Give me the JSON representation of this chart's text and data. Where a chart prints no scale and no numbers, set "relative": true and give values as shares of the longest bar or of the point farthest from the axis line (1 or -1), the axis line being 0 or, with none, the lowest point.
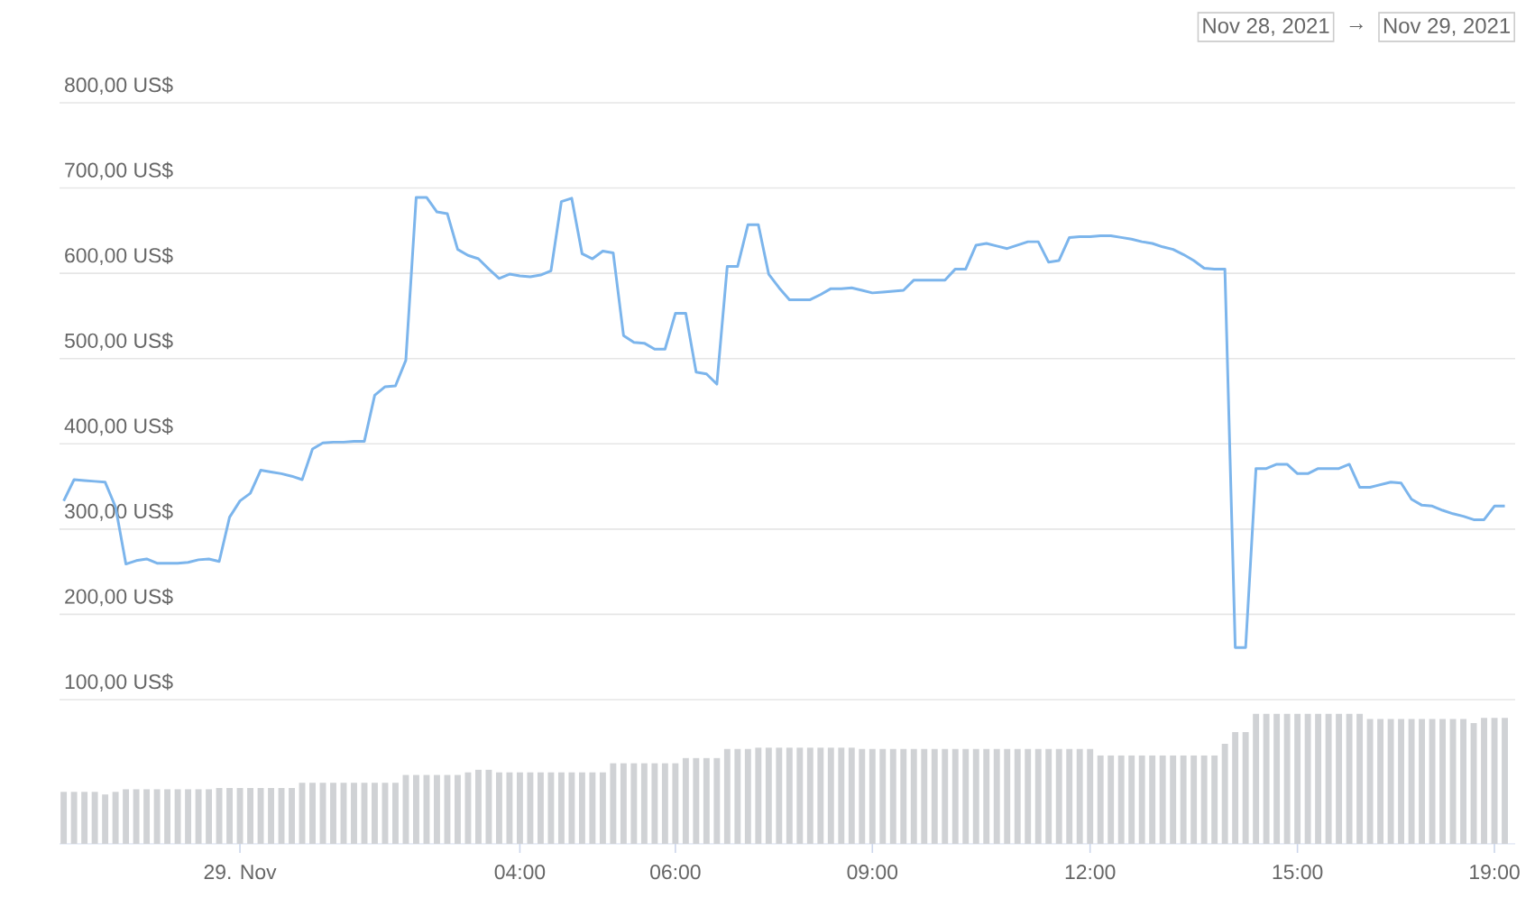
{
  "chart_data": [
    {
      "type": "line",
      "color": "#7cb5ec",
      "grid": "y",
      "tick_labels": "y",
      "ylim": [
        100,
        800
      ],
      "yticks": [
        {
          "value": 100,
          "label": "100,00 US$"
        },
        {
          "value": 200,
          "label": "200,00 US$"
        },
        {
          "value": 300,
          "label": "300,00 US$"
        },
        {
          "value": 400,
          "label": "400,00 US$"
        },
        {
          "value": 500,
          "label": "500,00 US$"
        },
        {
          "value": 600,
          "label": "600,00 US$"
        },
        {
          "value": 700,
          "label": "700,00 US$"
        },
        {
          "value": 800,
          "label": "800,00 US$"
        }
      ],
      "annotations": [
        "Nov 28, 2021",
        "→",
        "Nov 29, 2021"
      ],
      "categories": [
        null,
        null,
        null,
        null,
        null,
        null,
        null,
        null,
        null,
        null,
        null,
        null,
        null,
        null,
        null,
        null,
        null,
        null,
        null,
        null,
        null,
        null,
        null,
        null,
        null,
        null,
        null,
        null,
        null,
        null,
        null,
        null,
        null,
        null,
        null,
        null,
        null,
        null,
        null,
        null,
        null,
        null,
        null,
        null,
        null,
        null,
        null,
        null,
        null,
        null,
        null,
        null,
        null,
        null,
        null,
        null,
        null,
        null,
        null,
        null,
        null,
        null,
        null,
        null,
        null,
        null,
        null,
        null,
        null,
        null,
        null,
        null,
        null,
        null,
        null,
        null,
        null,
        null,
        null,
        null,
        null,
        null,
        null,
        null,
        null,
        null,
        null,
        null,
        null,
        null,
        null,
        null,
        null,
        null,
        null,
        null,
        null,
        null,
        null,
        null,
        null,
        null,
        null,
        null,
        null,
        null,
        null,
        null,
        null,
        null,
        null,
        null,
        null,
        null,
        null,
        null,
        null,
        null,
        null,
        null,
        null,
        null,
        null,
        null,
        null,
        null,
        null,
        null,
        null,
        null,
        null,
        null,
        null,
        null,
        null,
        null,
        null,
        null,
        null,
        null
      ],
      "values": [
        333,
        358,
        357,
        356,
        355,
        326,
        259,
        263,
        265,
        260,
        260,
        260,
        261,
        264,
        265,
        262,
        314,
        333,
        342,
        369,
        367,
        365,
        362,
        358,
        394,
        401,
        402,
        402,
        403,
        403,
        457,
        467,
        468,
        498,
        689,
        689,
        672,
        670,
        628,
        621,
        617,
        605,
        594,
        599,
        597,
        596,
        598,
        603,
        684,
        688,
        623,
        617,
        626,
        624,
        527,
        519,
        518,
        511,
        511,
        553,
        553,
        484,
        482,
        470,
        608,
        608,
        657,
        657,
        599,
        583,
        569,
        569,
        569,
        575,
        582,
        582,
        583,
        580,
        577,
        578,
        579,
        580,
        592,
        592,
        592,
        592,
        605,
        605,
        633,
        635,
        632,
        629,
        633,
        637,
        637,
        613,
        615,
        642,
        643,
        643,
        644,
        644,
        642,
        640,
        637,
        635,
        631,
        628,
        622,
        615,
        606,
        605,
        605,
        161,
        161,
        371,
        371,
        376,
        376,
        365,
        365,
        371,
        371,
        371,
        376,
        349,
        349,
        352,
        355,
        354,
        335,
        328,
        327,
        322,
        318,
        315,
        311,
        311,
        327,
        327
      ]
    },
    {
      "type": "bar",
      "relative": true,
      "color": "#d0d2d5",
      "tick_labels": "x",
      "categories": [
        null,
        null,
        null,
        null,
        null,
        null,
        null,
        null,
        null,
        null,
        null,
        null,
        null,
        null,
        null,
        null,
        null,
        "29. Nov",
        null,
        null,
        null,
        null,
        null,
        null,
        null,
        null,
        null,
        null,
        null,
        null,
        null,
        null,
        null,
        null,
        null,
        null,
        null,
        null,
        null,
        null,
        null,
        null,
        null,
        null,
        "04:00",
        null,
        null,
        null,
        null,
        null,
        null,
        null,
        null,
        null,
        null,
        null,
        null,
        null,
        null,
        "06:00",
        null,
        null,
        null,
        null,
        null,
        null,
        null,
        null,
        null,
        null,
        null,
        null,
        null,
        null,
        null,
        null,
        null,
        null,
        "09:00",
        null,
        null,
        null,
        null,
        null,
        null,
        null,
        null,
        null,
        null,
        null,
        null,
        null,
        null,
        null,
        null,
        null,
        null,
        null,
        null,
        "12:00",
        null,
        null,
        null,
        null,
        null,
        null,
        null,
        null,
        null,
        null,
        null,
        null,
        null,
        null,
        null,
        null,
        null,
        null,
        null,
        "15:00",
        null,
        null,
        null,
        null,
        null,
        null,
        null,
        null,
        null,
        null,
        null,
        null,
        null,
        null,
        null,
        null,
        null,
        null,
        "19:00",
        null
      ],
      "values": [
        0.4,
        0.4,
        0.4,
        0.4,
        0.38,
        0.4,
        0.42,
        0.42,
        0.42,
        0.42,
        0.42,
        0.42,
        0.42,
        0.42,
        0.42,
        0.43,
        0.43,
        0.43,
        0.43,
        0.43,
        0.43,
        0.43,
        0.43,
        0.47,
        0.47,
        0.47,
        0.47,
        0.47,
        0.47,
        0.47,
        0.47,
        0.47,
        0.47,
        0.53,
        0.53,
        0.53,
        0.53,
        0.53,
        0.53,
        0.55,
        0.57,
        0.57,
        0.55,
        0.55,
        0.55,
        0.55,
        0.55,
        0.55,
        0.55,
        0.55,
        0.55,
        0.55,
        0.55,
        0.62,
        0.62,
        0.62,
        0.62,
        0.62,
        0.62,
        0.62,
        0.66,
        0.66,
        0.66,
        0.66,
        0.73,
        0.73,
        0.73,
        0.74,
        0.74,
        0.74,
        0.74,
        0.74,
        0.74,
        0.74,
        0.74,
        0.74,
        0.74,
        0.73,
        0.73,
        0.73,
        0.73,
        0.73,
        0.73,
        0.73,
        0.73,
        0.73,
        0.73,
        0.73,
        0.73,
        0.73,
        0.73,
        0.73,
        0.73,
        0.73,
        0.73,
        0.73,
        0.73,
        0.73,
        0.73,
        0.73,
        0.68,
        0.68,
        0.68,
        0.68,
        0.68,
        0.68,
        0.68,
        0.68,
        0.68,
        0.68,
        0.68,
        0.68,
        0.77,
        0.86,
        0.86,
        1.0,
        1.0,
        1.0,
        1.0,
        1.0,
        1.0,
        1.0,
        1.0,
        1.0,
        1.0,
        1.0,
        0.96,
        0.96,
        0.96,
        0.96,
        0.96,
        0.96,
        0.96,
        0.96,
        0.96,
        0.96,
        0.93,
        0.97,
        0.97,
        0.97
      ]
    }
  ]
}
